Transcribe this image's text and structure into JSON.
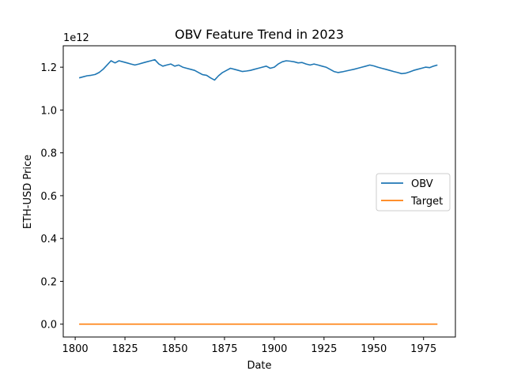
{
  "chart_data": {
    "type": "line",
    "title": "OBV Feature Trend in 2023",
    "xlabel": "Date",
    "ylabel": "ETH-USD Price",
    "y_offset_label": "1e12",
    "xlim": [
      1794,
      1991
    ],
    "ylim": [
      -0.06,
      1.3
    ],
    "x_ticks": [
      1800,
      1825,
      1850,
      1875,
      1900,
      1925,
      1950,
      1975
    ],
    "y_ticks": [
      0.0,
      0.2,
      0.4,
      0.6,
      0.8,
      1.0,
      1.2
    ],
    "y_tick_labels": [
      "0.0",
      "0.2",
      "0.4",
      "0.6",
      "0.8",
      "1.0",
      "1.2"
    ],
    "legend_position": "center-right",
    "grid": false,
    "series": [
      {
        "name": "OBV",
        "color": "#1f77b4",
        "x": [
          1802,
          1804,
          1806,
          1808,
          1810,
          1812,
          1814,
          1816,
          1818,
          1820,
          1822,
          1824,
          1826,
          1828,
          1830,
          1832,
          1834,
          1836,
          1838,
          1840,
          1842,
          1844,
          1846,
          1848,
          1850,
          1852,
          1854,
          1856,
          1858,
          1860,
          1862,
          1864,
          1866,
          1868,
          1870,
          1872,
          1874,
          1876,
          1878,
          1880,
          1882,
          1884,
          1886,
          1888,
          1890,
          1892,
          1894,
          1896,
          1898,
          1900,
          1902,
          1904,
          1906,
          1908,
          1910,
          1912,
          1914,
          1916,
          1918,
          1920,
          1922,
          1924,
          1926,
          1928,
          1930,
          1932,
          1934,
          1936,
          1938,
          1940,
          1942,
          1944,
          1946,
          1948,
          1950,
          1952,
          1954,
          1956,
          1958,
          1960,
          1962,
          1964,
          1966,
          1968,
          1970,
          1972,
          1974,
          1976,
          1978,
          1980,
          1982
        ],
        "y": [
          1.15,
          1.155,
          1.16,
          1.162,
          1.166,
          1.175,
          1.19,
          1.21,
          1.23,
          1.22,
          1.23,
          1.225,
          1.22,
          1.215,
          1.21,
          1.215,
          1.22,
          1.225,
          1.23,
          1.235,
          1.215,
          1.205,
          1.21,
          1.215,
          1.205,
          1.21,
          1.2,
          1.195,
          1.19,
          1.185,
          1.175,
          1.165,
          1.162,
          1.15,
          1.14,
          1.16,
          1.175,
          1.185,
          1.195,
          1.19,
          1.185,
          1.18,
          1.182,
          1.185,
          1.19,
          1.195,
          1.2,
          1.205,
          1.195,
          1.2,
          1.215,
          1.225,
          1.23,
          1.228,
          1.225,
          1.22,
          1.222,
          1.215,
          1.21,
          1.215,
          1.21,
          1.205,
          1.2,
          1.19,
          1.18,
          1.175,
          1.178,
          1.182,
          1.186,
          1.19,
          1.195,
          1.2,
          1.205,
          1.21,
          1.206,
          1.2,
          1.195,
          1.19,
          1.185,
          1.18,
          1.175,
          1.17,
          1.172,
          1.178,
          1.185,
          1.19,
          1.195,
          1.2,
          1.198,
          1.205,
          1.21
        ]
      },
      {
        "name": "Target",
        "color": "#ff7f0e",
        "x": [
          1802,
          1982
        ],
        "y": [
          0.0,
          0.0
        ]
      }
    ]
  }
}
